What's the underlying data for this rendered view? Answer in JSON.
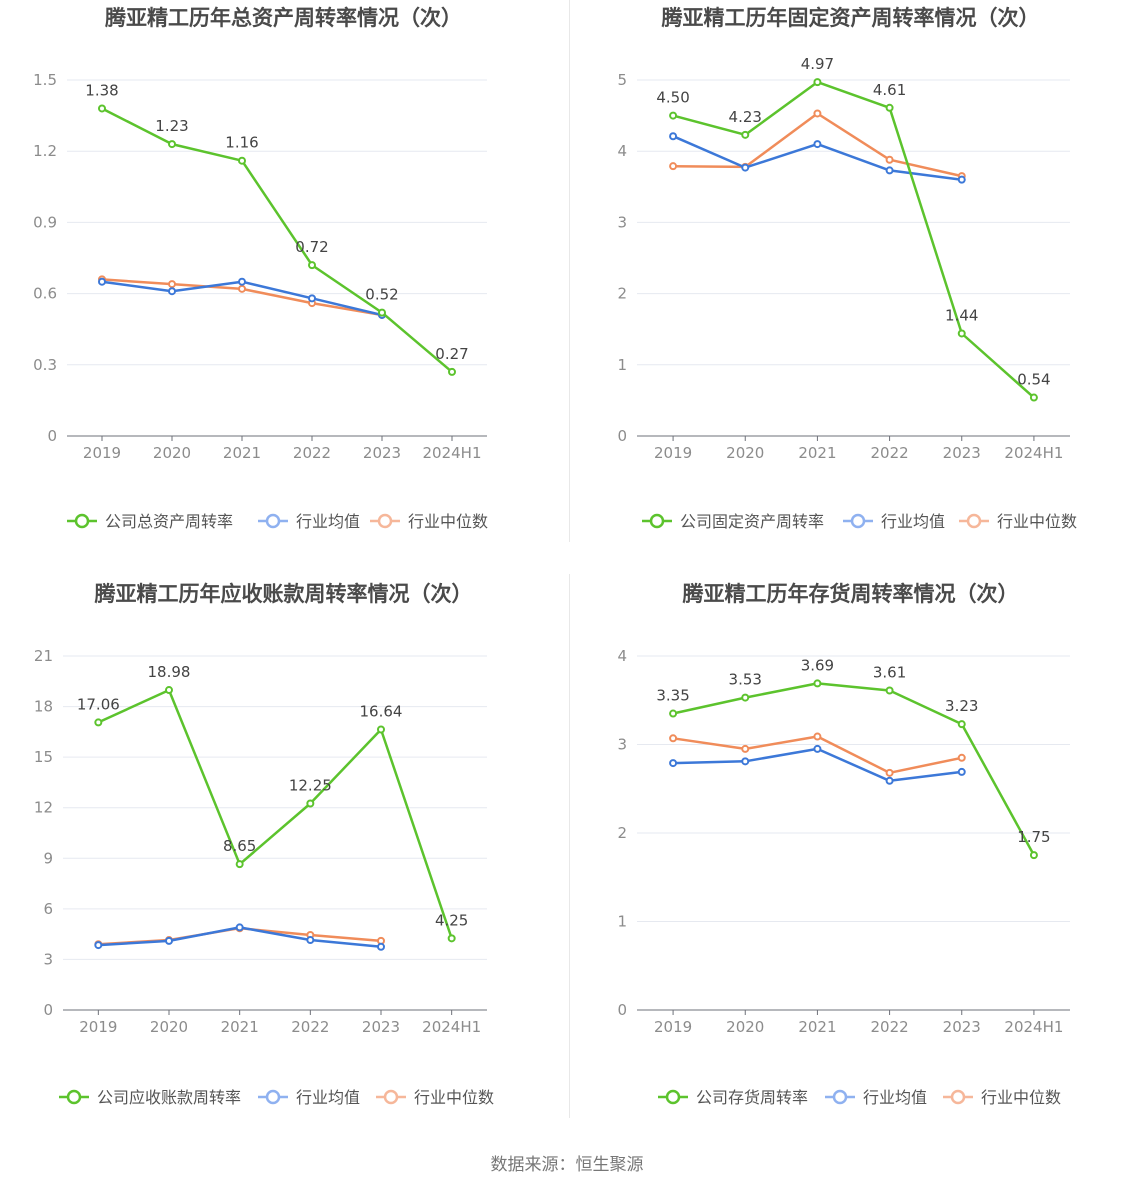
{
  "colors": {
    "company": "#5cc32d",
    "avg": "#3c78d8",
    "median": "#f08c5a",
    "avg_legend": "#8fb1f0",
    "median_legend": "#f6b79a"
  },
  "chart_data": [
    {
      "type": "line",
      "title": "腾亚精工历年总资产周转率情况（次）",
      "categories": [
        "2019",
        "2020",
        "2021",
        "2022",
        "2023",
        "2024H1"
      ],
      "y_ticks": [
        "0",
        "0.3",
        "0.6",
        "0.9",
        "1.2",
        "1.5"
      ],
      "ylim": [
        0,
        1.5
      ],
      "series": [
        {
          "name": "公司总资产周转率",
          "key": "company",
          "values": [
            1.38,
            1.23,
            1.16,
            0.72,
            0.52,
            0.27
          ],
          "labels": [
            "1.38",
            "1.23",
            "1.16",
            "0.72",
            "0.52",
            "0.27"
          ]
        },
        {
          "name": "行业均值",
          "key": "avg",
          "values": [
            0.65,
            0.61,
            0.65,
            0.58,
            0.51,
            null
          ]
        },
        {
          "name": "行业中位数",
          "key": "median",
          "values": [
            0.66,
            0.64,
            0.62,
            0.56,
            0.51,
            null
          ]
        }
      ]
    },
    {
      "type": "line",
      "title": "腾亚精工历年固定资产周转率情况（次）",
      "categories": [
        "2019",
        "2020",
        "2021",
        "2022",
        "2023",
        "2024H1"
      ],
      "y_ticks": [
        "0",
        "1",
        "2",
        "3",
        "4",
        "5"
      ],
      "ylim": [
        0,
        5
      ],
      "series": [
        {
          "name": "公司固定资产周转率",
          "key": "company",
          "values": [
            4.5,
            4.23,
            4.97,
            4.61,
            1.44,
            0.54
          ],
          "labels": [
            "4.50",
            "4.23",
            "4.97",
            "4.61",
            "1.44",
            "0.54"
          ]
        },
        {
          "name": "行业均值",
          "key": "avg",
          "values": [
            4.21,
            3.77,
            4.1,
            3.73,
            3.6,
            null
          ]
        },
        {
          "name": "行业中位数",
          "key": "median",
          "values": [
            3.79,
            3.78,
            4.53,
            3.88,
            3.65,
            null
          ]
        }
      ]
    },
    {
      "type": "line",
      "title": "腾亚精工历年应收账款周转率情况（次）",
      "categories": [
        "2019",
        "2020",
        "2021",
        "2022",
        "2023",
        "2024H1"
      ],
      "y_ticks": [
        "0",
        "3",
        "6",
        "9",
        "12",
        "15",
        "18",
        "21"
      ],
      "ylim": [
        0,
        21
      ],
      "series": [
        {
          "name": "公司应收账款周转率",
          "key": "company",
          "values": [
            17.06,
            18.98,
            8.65,
            12.25,
            16.64,
            4.25
          ],
          "labels": [
            "17.06",
            "18.98",
            "8.65",
            "12.25",
            "16.64",
            "4.25"
          ]
        },
        {
          "name": "行业均值",
          "key": "avg",
          "values": [
            3.85,
            4.1,
            4.9,
            4.15,
            3.75,
            null
          ]
        },
        {
          "name": "行业中位数",
          "key": "median",
          "values": [
            3.9,
            4.15,
            4.85,
            4.45,
            4.1,
            null
          ]
        }
      ]
    },
    {
      "type": "line",
      "title": "腾亚精工历年存货周转率情况（次）",
      "categories": [
        "2019",
        "2020",
        "2021",
        "2022",
        "2023",
        "2024H1"
      ],
      "y_ticks": [
        "0",
        "1",
        "2",
        "3",
        "4"
      ],
      "ylim": [
        0,
        4
      ],
      "series": [
        {
          "name": "公司存货周转率",
          "key": "company",
          "values": [
            3.35,
            3.53,
            3.69,
            3.61,
            3.23,
            1.75
          ],
          "labels": [
            "3.35",
            "3.53",
            "3.69",
            "3.61",
            "3.23",
            "1.75"
          ]
        },
        {
          "name": "行业均值",
          "key": "avg",
          "values": [
            2.79,
            2.81,
            2.95,
            2.59,
            2.69,
            null
          ]
        },
        {
          "name": "行业中位数",
          "key": "median",
          "values": [
            3.07,
            2.95,
            3.09,
            2.68,
            2.85,
            null
          ]
        }
      ]
    }
  ],
  "footer": {
    "source": "数据来源：恒生聚源"
  }
}
